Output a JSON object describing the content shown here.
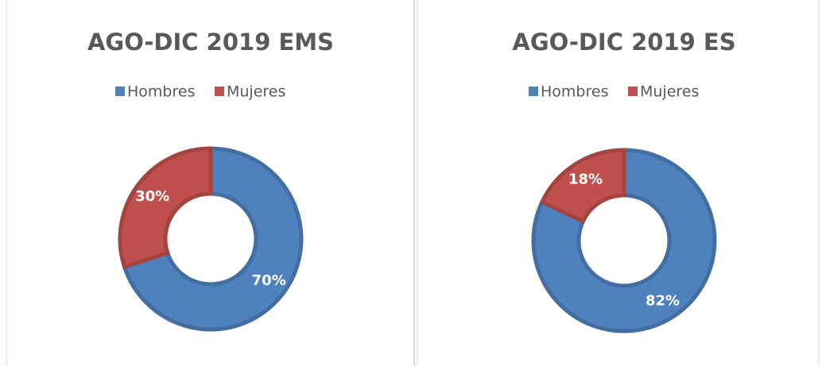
{
  "chart_data": [
    {
      "type": "donut",
      "title": "AGO-DIC 2019 EMS",
      "categories": [
        "Hombres",
        "Mujeres"
      ],
      "values": [
        70,
        30
      ],
      "value_labels": [
        "70%",
        "30%"
      ],
      "colors": [
        "#4f81bd",
        "#c0504d"
      ]
    },
    {
      "type": "donut",
      "title": "AGO-DIC 2019 ES",
      "categories": [
        "Hombres",
        "Mujeres"
      ],
      "values": [
        82,
        18
      ],
      "value_labels": [
        "82%",
        "18%"
      ],
      "colors": [
        "#4f81bd",
        "#c0504d"
      ]
    }
  ]
}
